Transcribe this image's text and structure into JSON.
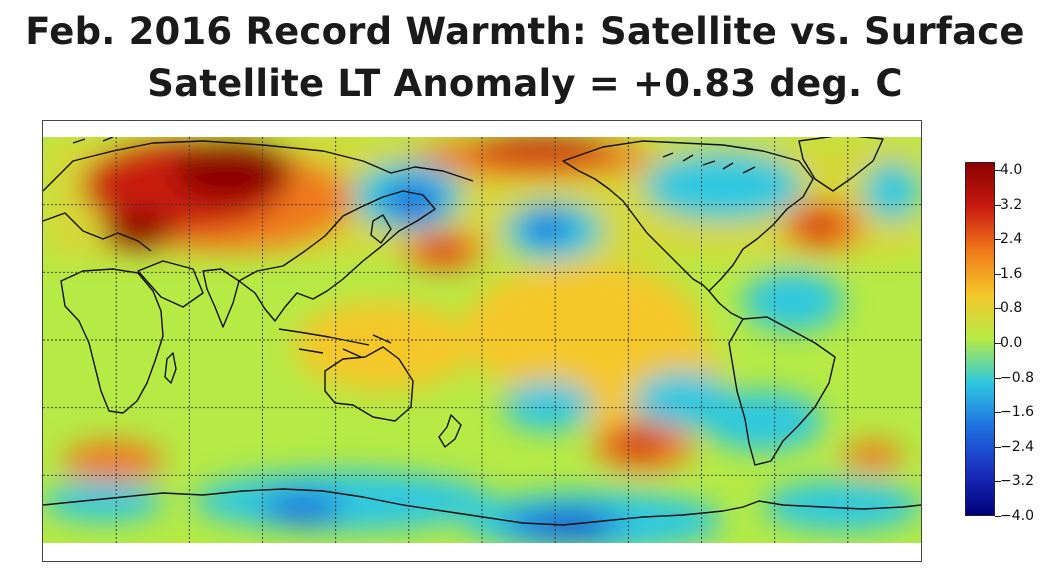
{
  "title": {
    "line1": "Feb. 2016 Record Warmth: Satellite vs. Surface",
    "line2": "Satellite LT Anomaly = +0.83 deg. C"
  },
  "map": {
    "projection": "equirectangular",
    "center_longitude": "Pacific",
    "grid": true,
    "colors": {
      "very_cold": "#1a2fbf",
      "cold": "#1e6fe0",
      "cool": "#2ec8e0",
      "neutral": "#b6ea45",
      "warm": "#f5c82a",
      "hot": "#f07a1a",
      "very_hot": "#c81a10",
      "extreme": "#8b0000",
      "coastline": "#111111",
      "gridline": "#333333"
    }
  },
  "colorbar": {
    "min": -4.0,
    "max": 4.0,
    "ticks": [
      "4.0",
      "3.2",
      "2.4",
      "1.6",
      "0.8",
      "0.0",
      "−0.8",
      "−1.6",
      "−2.4",
      "−3.2",
      "−4.0"
    ]
  }
}
